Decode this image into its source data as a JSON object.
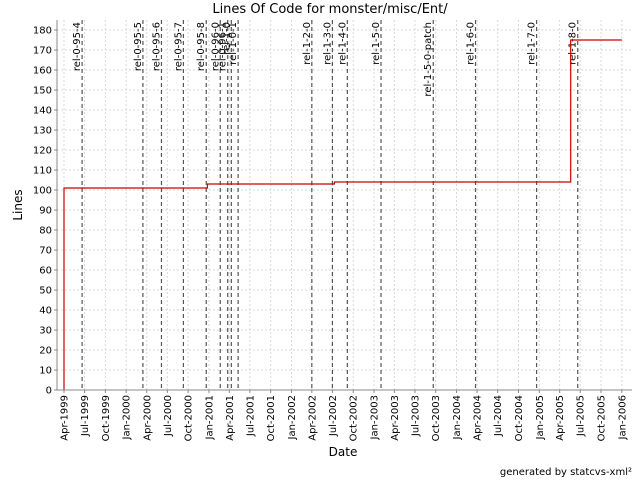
{
  "chart_data": {
    "type": "line",
    "title": "Lines Of Code for monster/misc/Ent/",
    "xlabel": "Date",
    "ylabel": "Lines",
    "ylim": [
      0,
      185
    ],
    "yticks": [
      0,
      10,
      20,
      30,
      40,
      50,
      60,
      70,
      80,
      90,
      100,
      110,
      120,
      130,
      140,
      150,
      160,
      170,
      180
    ],
    "xlim": [
      "1999-03-01",
      "2006-02-15"
    ],
    "xticks": [
      {
        "label": "Apr-1999",
        "date": "1999-04-01"
      },
      {
        "label": "Jul-1999",
        "date": "1999-07-01"
      },
      {
        "label": "Oct-1999",
        "date": "1999-10-01"
      },
      {
        "label": "Jan-2000",
        "date": "2000-01-01"
      },
      {
        "label": "Apr-2000",
        "date": "2000-04-01"
      },
      {
        "label": "Jul-2000",
        "date": "2000-07-01"
      },
      {
        "label": "Oct-2000",
        "date": "2000-10-01"
      },
      {
        "label": "Jan-2001",
        "date": "2001-01-01"
      },
      {
        "label": "Apr-2001",
        "date": "2001-04-01"
      },
      {
        "label": "Jul-2001",
        "date": "2001-07-01"
      },
      {
        "label": "Oct-2001",
        "date": "2001-10-01"
      },
      {
        "label": "Jan-2002",
        "date": "2002-01-01"
      },
      {
        "label": "Apr-2002",
        "date": "2002-04-01"
      },
      {
        "label": "Jul-2002",
        "date": "2002-07-01"
      },
      {
        "label": "Oct-2002",
        "date": "2002-10-01"
      },
      {
        "label": "Jan-2003",
        "date": "2003-01-01"
      },
      {
        "label": "Apr-2003",
        "date": "2003-04-01"
      },
      {
        "label": "Jul-2003",
        "date": "2003-07-01"
      },
      {
        "label": "Oct-2003",
        "date": "2003-10-01"
      },
      {
        "label": "Jan-2004",
        "date": "2004-01-01"
      },
      {
        "label": "Apr-2004",
        "date": "2004-04-01"
      },
      {
        "label": "Jul-2004",
        "date": "2004-07-01"
      },
      {
        "label": "Oct-2004",
        "date": "2004-10-01"
      },
      {
        "label": "Jan-2005",
        "date": "2005-01-01"
      },
      {
        "label": "Apr-2005",
        "date": "2005-04-01"
      },
      {
        "label": "Jul-2005",
        "date": "2005-07-01"
      },
      {
        "label": "Oct-2005",
        "date": "2005-10-01"
      },
      {
        "label": "Jan-2006",
        "date": "2006-01-01"
      }
    ],
    "grid": true,
    "line_color": "#cc0000",
    "series": [
      {
        "points": [
          {
            "date": "1999-04-01",
            "value": 0
          },
          {
            "date": "1999-04-01",
            "value": 101
          },
          {
            "date": "2000-12-25",
            "value": 101
          },
          {
            "date": "2000-12-25",
            "value": 103
          },
          {
            "date": "2002-07-10",
            "value": 103
          },
          {
            "date": "2002-07-10",
            "value": 104
          },
          {
            "date": "2005-05-20",
            "value": 104
          },
          {
            "date": "2005-05-20",
            "value": 175
          },
          {
            "date": "2006-01-01",
            "value": 175
          }
        ]
      }
    ],
    "tags": [
      {
        "label": "rel-0-95-4",
        "date": "1999-06-20"
      },
      {
        "label": "rel-0-95-5",
        "date": "2000-03-15"
      },
      {
        "label": "rel-0-95-6",
        "date": "2000-06-05"
      },
      {
        "label": "rel-0-95-7",
        "date": "2000-09-10"
      },
      {
        "label": "rel-0-95-8",
        "date": "2000-12-20"
      },
      {
        "label": "rel-0-96-0",
        "date": "2001-02-20"
      },
      {
        "label": "rel-0-96-1",
        "date": "2001-03-25"
      },
      {
        "label": "rel-1-0",
        "date": "2001-04-10"
      },
      {
        "label": "rel-1-0-1",
        "date": "2001-05-10"
      },
      {
        "label": "rel-1-2-0",
        "date": "2002-04-01"
      },
      {
        "label": "rel-1-3-0",
        "date": "2002-07-01"
      },
      {
        "label": "rel-1-4-0",
        "date": "2002-09-05"
      },
      {
        "label": "rel-1-5-0",
        "date": "2003-02-01"
      },
      {
        "label": "rel-1-5-0-patch",
        "date": "2003-09-20"
      },
      {
        "label": "rel-1-6-0",
        "date": "2004-03-25"
      },
      {
        "label": "rel-1-7-0",
        "date": "2004-12-20"
      },
      {
        "label": "rel-1-8-0",
        "date": "2005-06-20"
      }
    ]
  },
  "footer": "generated by statcvs-xml²"
}
